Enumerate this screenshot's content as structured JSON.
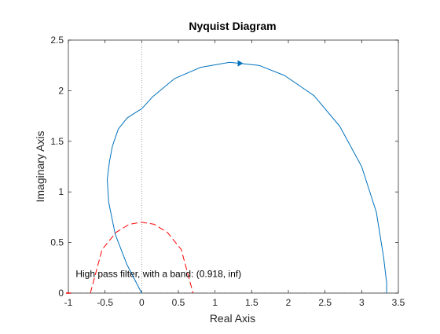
{
  "chart_data": {
    "type": "line",
    "title": "Nyquist Diagram",
    "xlabel": "Real Axis",
    "ylabel": "Imaginary Axis",
    "xlim": [
      -1,
      3.5
    ],
    "ylim": [
      0,
      2.5
    ],
    "xticks": [
      "-1",
      "-0.5",
      "0",
      "0.5",
      "1",
      "1.5",
      "2",
      "2.5",
      "3",
      "3.5"
    ],
    "yticks": [
      "0",
      "0.5",
      "1",
      "1.5",
      "2",
      "2.5"
    ],
    "grid": false,
    "box": true,
    "zero_reference_line": {
      "axis": "x",
      "value": 0,
      "style": "dotted",
      "color": "#7f7f7f"
    },
    "series": [
      {
        "style": "solid",
        "color": "#0072BD",
        "x": [
          0,
          -0.2,
          -0.36,
          -0.45,
          -0.47,
          -0.44,
          -0.4,
          -0.32,
          -0.2,
          -0.05,
          0,
          0.15,
          0.45,
          0.8,
          1.2,
          1.6,
          1.95,
          2.35,
          2.7,
          3.0,
          3.2,
          3.3,
          3.34,
          3.34
        ],
        "y": [
          0,
          0.28,
          0.58,
          0.9,
          1.12,
          1.3,
          1.45,
          1.62,
          1.73,
          1.8,
          1.82,
          1.94,
          2.12,
          2.23,
          2.28,
          2.25,
          2.15,
          1.95,
          1.65,
          1.25,
          0.8,
          0.35,
          0.1,
          0
        ],
        "arrow_at": {
          "x": 1.32,
          "y": 2.27
        }
      },
      {
        "style": "dashed",
        "color": "#FF0000",
        "x": [
          -0.7,
          -0.54,
          -0.35,
          -0.17,
          0,
          0.17,
          0.35,
          0.54,
          0.7
        ],
        "y": [
          0,
          0.43,
          0.6,
          0.68,
          0.7,
          0.68,
          0.6,
          0.43,
          0
        ]
      }
    ],
    "critical_point_marker": {
      "x": -1,
      "y": 0,
      "color": "#FF0000"
    },
    "annotation": "High pass filter, with a band: (0.918, inf)",
    "annotation_position": {
      "x": -0.9,
      "y": 0.16
    }
  }
}
